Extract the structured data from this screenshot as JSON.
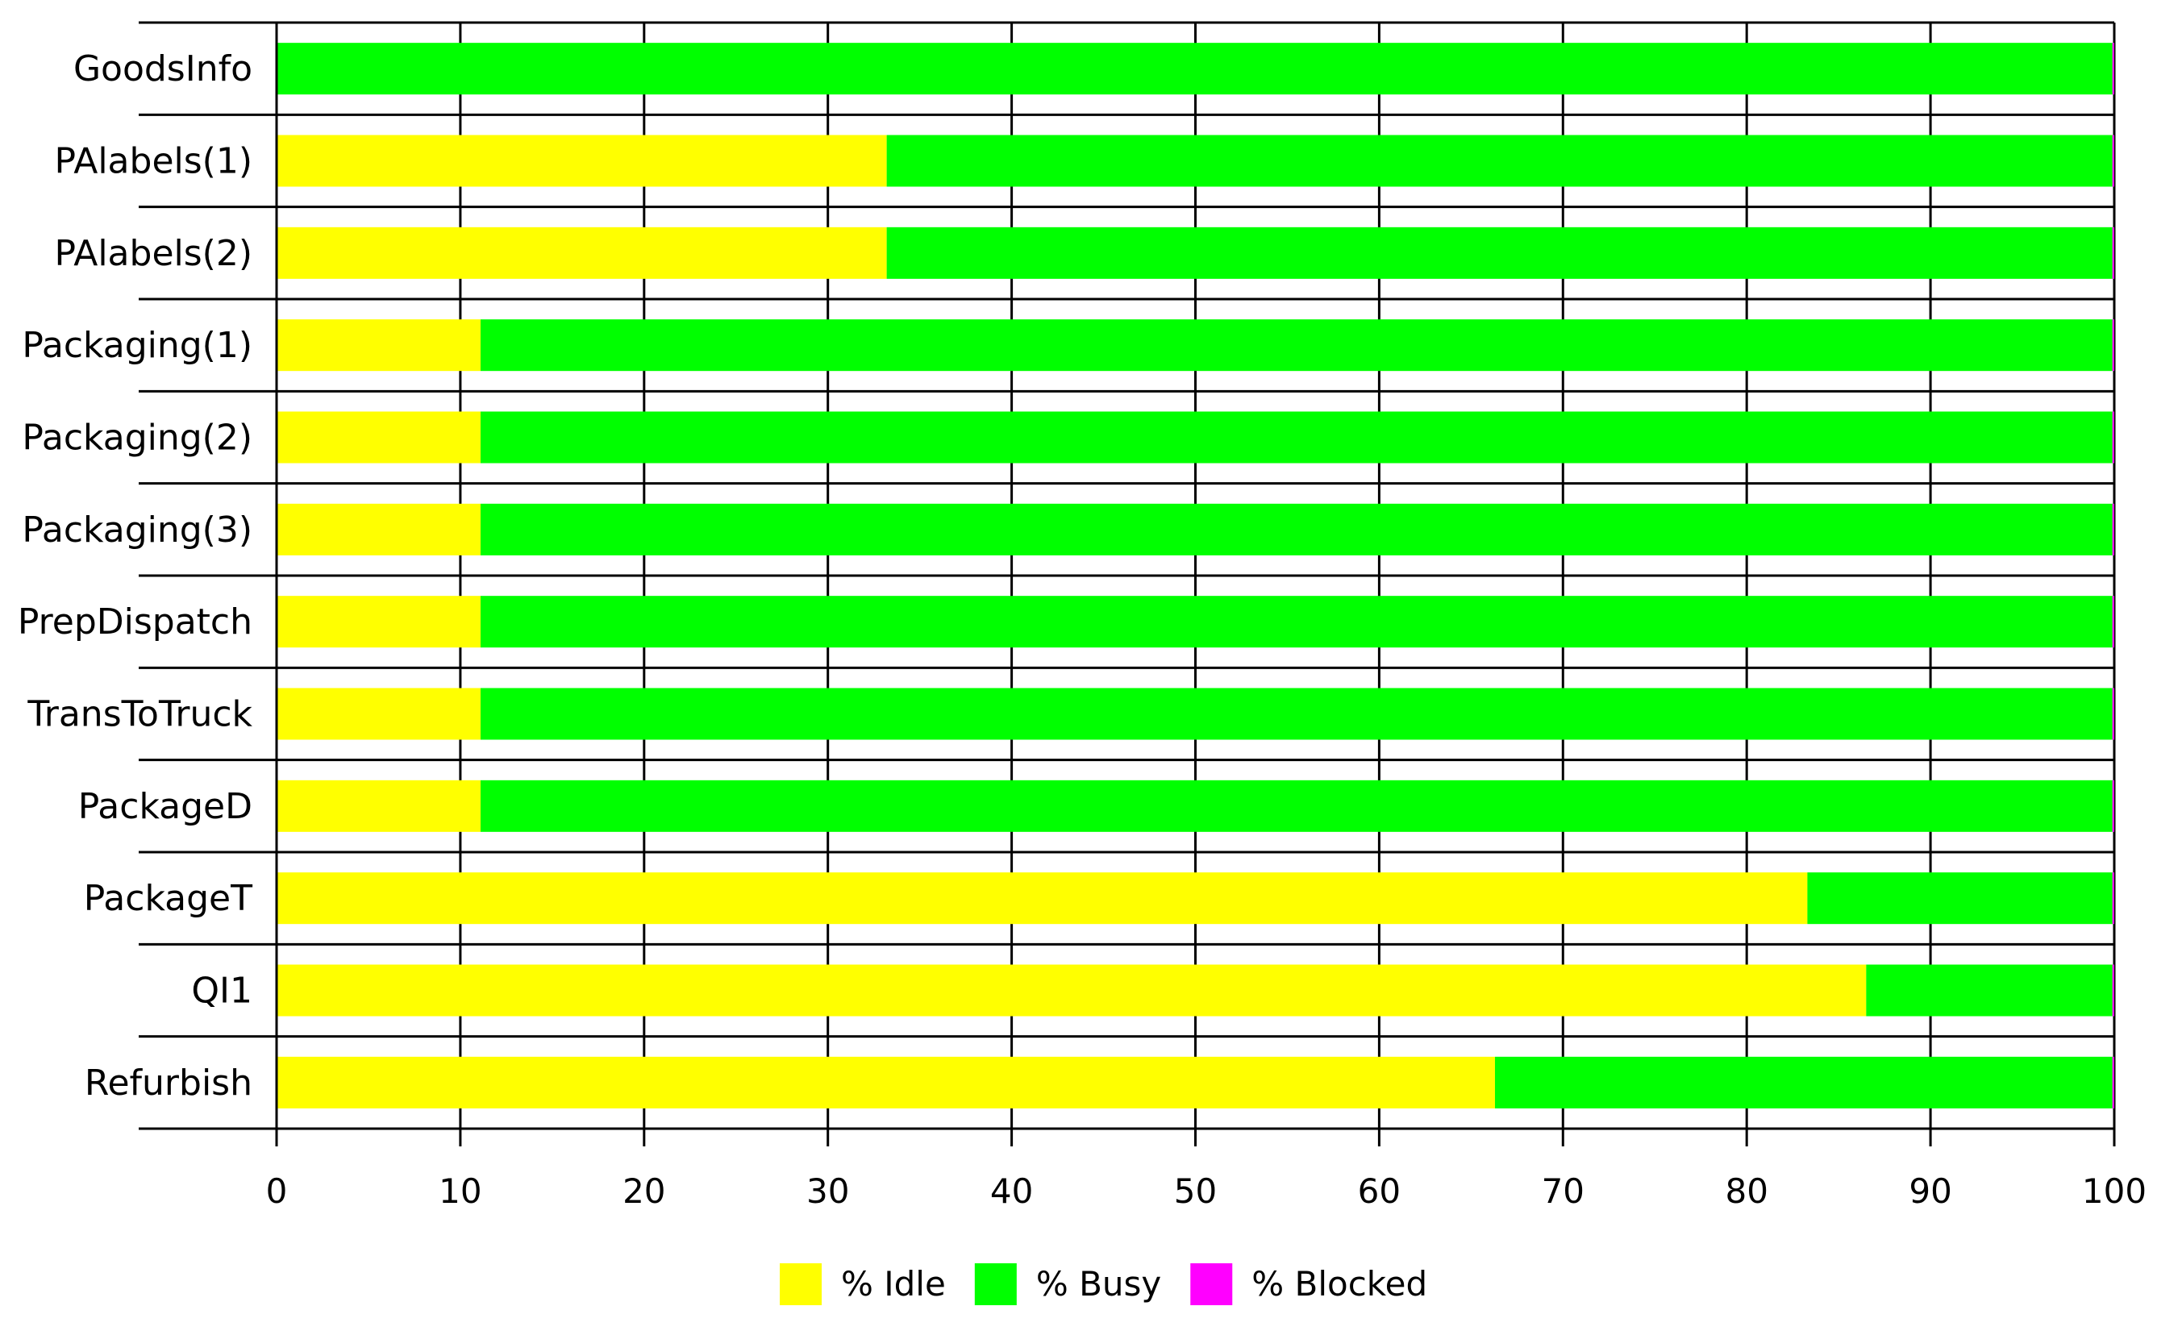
{
  "chart_data": {
    "type": "bar",
    "orientation": "horizontal",
    "stacked": true,
    "title": "",
    "xlabel": "",
    "ylabel": "",
    "xlim": [
      0,
      100
    ],
    "xticks": [
      0,
      10,
      20,
      30,
      40,
      50,
      60,
      70,
      80,
      90,
      100
    ],
    "xtick_labels": [
      "0",
      "10",
      "20",
      "30",
      "40",
      "50",
      "60",
      "70",
      "80",
      "90",
      "100"
    ],
    "grid": "vertical",
    "legend_position": "bottom",
    "categories": [
      "GoodsInfo",
      "PAlabels(1)",
      "PAlabels(2)",
      "Packaging(1)",
      "Packaging(2)",
      "Packaging(3)",
      "PrepDispatch",
      "TransToTruck",
      "PackageD",
      "PackageT",
      "QI1",
      "Refurbish"
    ],
    "series": [
      {
        "name": "% Idle",
        "color": "#ffff00",
        "values": [
          0,
          33.2,
          33.2,
          11.1,
          11.1,
          11.1,
          11.1,
          11.1,
          11.1,
          83.3,
          86.5,
          66.3
        ]
      },
      {
        "name": "% Busy",
        "color": "#00ff00",
        "values": [
          99.9,
          66.7,
          66.7,
          88.8,
          88.8,
          88.8,
          88.8,
          88.8,
          88.8,
          16.6,
          13.4,
          33.6
        ]
      },
      {
        "name": "% Blocked",
        "color": "#ff00ff",
        "values": [
          0.1,
          0.1,
          0.1,
          0.1,
          0.1,
          0.1,
          0.1,
          0.1,
          0.1,
          0.1,
          0.1,
          0.1
        ]
      }
    ]
  }
}
